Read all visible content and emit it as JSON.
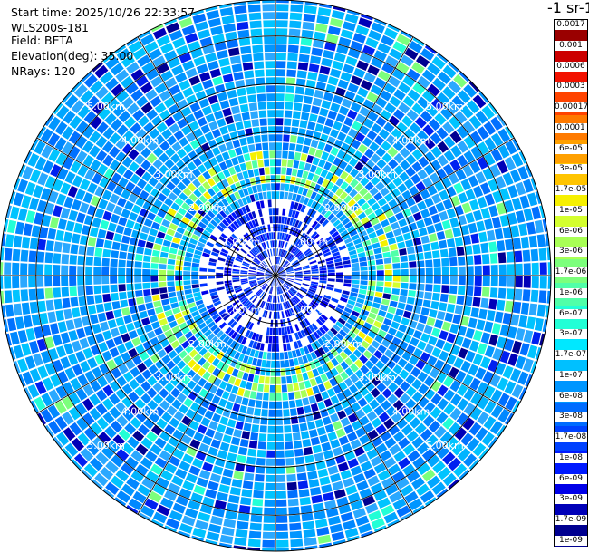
{
  "header": {
    "start_time": "Start time: 2025/10/26 22:33:57",
    "instrument": "WLS200s-181",
    "field": "Field: BETA",
    "elevation": "Elevation(deg): 35.00",
    "nrays": "NRays: 120"
  },
  "colorbar": {
    "title": "-1 sr-1",
    "labels": [
      "0.0017",
      "0.001",
      "0.0006",
      "0.0003",
      "0.00017",
      "0.0001",
      "6e-05",
      "3e-05",
      "1.7e-05",
      "1e-05",
      "6e-06",
      "3e-06",
      "1.7e-06",
      "1e-06",
      "6e-07",
      "3e-07",
      "1.7e-07",
      "1e-07",
      "6e-08",
      "3e-08",
      "1.7e-08",
      "1e-08",
      "6e-09",
      "3e-09",
      "1.7e-09",
      "1e-09"
    ],
    "colors": [
      "#9a0000",
      "#cc0000",
      "#f21200",
      "#ff4400",
      "#ff7a00",
      "#ffa000",
      "#ffc400",
      "#f6f000",
      "#d4ff2e",
      "#a8ff55",
      "#7cff7c",
      "#50ffa8",
      "#22ffd6",
      "#00e8ff",
      "#00c0ff",
      "#0096ff",
      "#006cff",
      "#0042ff",
      "#001aff",
      "#0000e8",
      "#0000b8",
      "#000090"
    ]
  },
  "range_labels": [
    "1.00km",
    "2.00km",
    "3.00km",
    "4.00km",
    "5.00km"
  ],
  "chart_data": {
    "type": "heatmap",
    "subtype": "polar-ppi",
    "title": "",
    "field": "BETA",
    "elevation_deg": 35.0,
    "n_rays": 120,
    "range_rings_km": [
      1,
      2,
      3,
      4,
      5
    ],
    "azimuth_lines_deg": [
      0,
      30,
      60,
      90,
      120,
      150,
      180,
      210,
      240,
      270,
      300,
      330
    ],
    "color_scale": "log",
    "value_range": [
      1e-09,
      0.0017
    ],
    "features": {
      "background_level": 1e-07,
      "enhanced_ring_km": [
        1.8,
        2.6
      ],
      "enhanced_ring_level": 1.7e-06
    }
  }
}
